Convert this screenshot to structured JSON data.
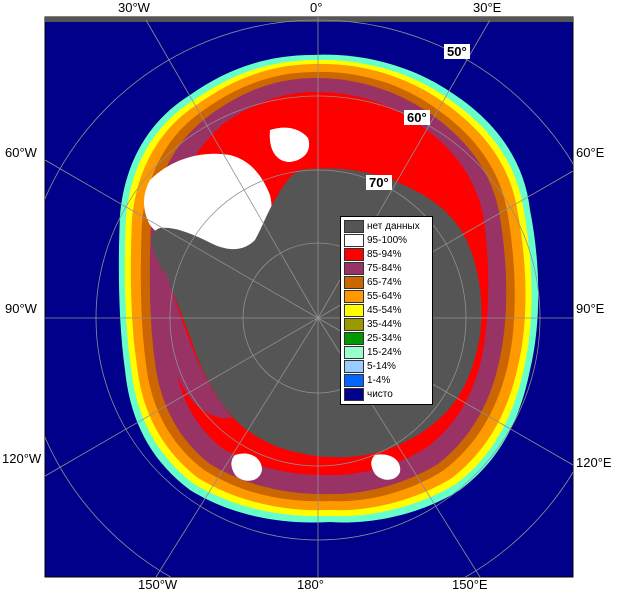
{
  "map": {
    "longitude_labels": [
      {
        "id": "top-30w",
        "text": "30°W"
      },
      {
        "id": "top-0",
        "text": "0°"
      },
      {
        "id": "top-30e",
        "text": "30°E"
      },
      {
        "id": "left-60w",
        "text": "60°W"
      },
      {
        "id": "left-90w",
        "text": "90°W"
      },
      {
        "id": "left-120w",
        "text": "120°W"
      },
      {
        "id": "right-60e",
        "text": "60°E"
      },
      {
        "id": "right-90e",
        "text": "90°E"
      },
      {
        "id": "right-120e",
        "text": "120°E"
      },
      {
        "id": "bottom-150w",
        "text": "150°W"
      },
      {
        "id": "bottom-180",
        "text": "180°"
      },
      {
        "id": "bottom-150e",
        "text": "150°E"
      }
    ],
    "latitude_labels": [
      {
        "id": "lat-50",
        "text": "50°"
      },
      {
        "id": "lat-60",
        "text": "60°"
      },
      {
        "id": "lat-70",
        "text": "70°"
      }
    ],
    "colors": {
      "ocean": "#00008b",
      "land": "#555555",
      "grid": "#909090"
    }
  },
  "legend": {
    "items": [
      {
        "label": "нет данных",
        "color": "#555555"
      },
      {
        "label": "95-100%",
        "color": "#ffffff"
      },
      {
        "label": "85-94%",
        "color": "#ff0000"
      },
      {
        "label": "75-84%",
        "color": "#993366"
      },
      {
        "label": "65-74%",
        "color": "#cc6600"
      },
      {
        "label": "55-64%",
        "color": "#ff9900"
      },
      {
        "label": "45-54%",
        "color": "#ffff00"
      },
      {
        "label": "35-44%",
        "color": "#999900"
      },
      {
        "label": "25-34%",
        "color": "#009900"
      },
      {
        "label": "15-24%",
        "color": "#99ffcc"
      },
      {
        "label": "5-14%",
        "color": "#99ccff"
      },
      {
        "label": "1-4%",
        "color": "#0066ff"
      },
      {
        "label": "чисто",
        "color": "#00008b"
      }
    ]
  }
}
